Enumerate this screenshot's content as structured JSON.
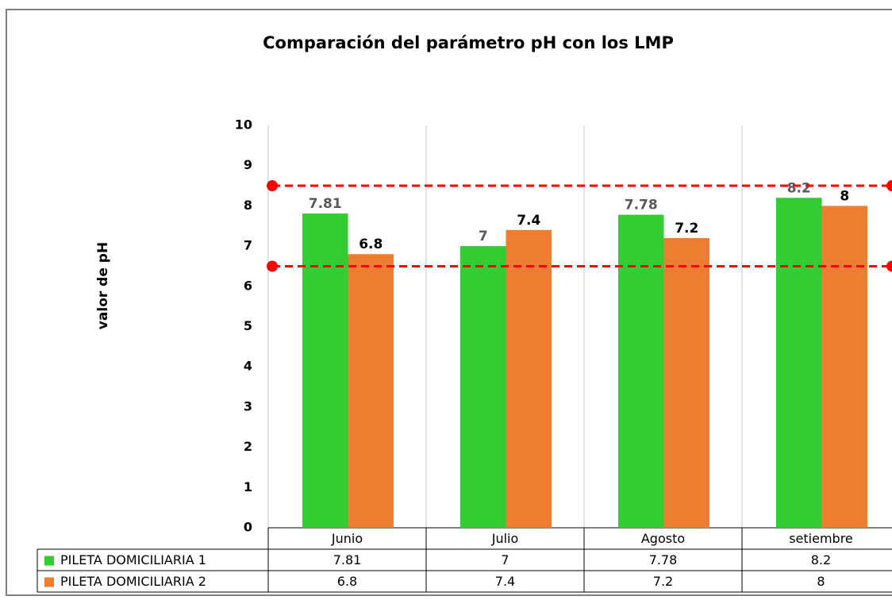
{
  "chart_data": {
    "type": "bar",
    "title": "Comparación  del parámetro pH con los LMP",
    "y_label": "valor de pH",
    "categories": [
      "Junio",
      "Julio",
      "Agosto",
      "setiembre"
    ],
    "series": [
      {
        "name": "PILETA DOMICILIARIA 1",
        "color": "#33cc33",
        "label_color": "#595959",
        "values": [
          7.81,
          7,
          7.78,
          8.2
        ]
      },
      {
        "name": "PILETA DOMICILIARIA 2",
        "color": "#ed7d31",
        "label_color": "#000000",
        "values": [
          6.8,
          7.4,
          7.2,
          8
        ]
      }
    ],
    "reference_lines": {
      "color": "#ff0000",
      "values": [
        8.5,
        6.5
      ]
    },
    "ylim": [
      0,
      10
    ],
    "yticks": [
      0,
      1,
      2,
      3,
      4,
      5,
      6,
      7,
      8,
      9,
      10
    ],
    "data_table": true
  }
}
